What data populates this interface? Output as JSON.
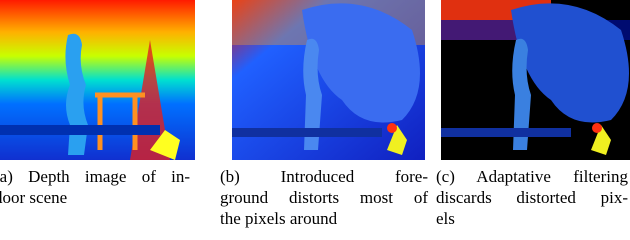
{
  "figures": [
    {
      "caption_lines": [
        "(a) Depth image of in-",
        "door scene"
      ]
    },
    {
      "caption_lines": [
        "(b) Introduced fore-",
        "ground distorts most of",
        "the pixels around"
      ]
    },
    {
      "caption_lines": [
        "(c) Adaptative filtering",
        "discards distorted pix-",
        "els"
      ]
    }
  ]
}
